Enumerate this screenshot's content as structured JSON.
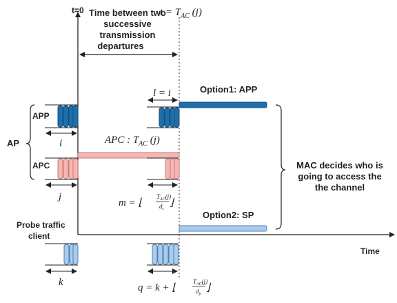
{
  "colors": {
    "app_fill": "#1f6fad",
    "app_stroke": "#16507e",
    "apc_fill": "#f5b7b4",
    "apc_stroke": "#c97d7a",
    "probe_fill": "#a9ccec",
    "probe_stroke": "#4f7fad",
    "axis": "#222222"
  },
  "labels": {
    "t0": "t=0",
    "interval_title_line1": "Time between two",
    "interval_title_line2": "successive",
    "interval_title_line3": "transmission",
    "interval_title_line4": "departures",
    "t_eq": "t = T",
    "t_sub": "AC",
    "t_arg": " (j)",
    "ap": "AP",
    "app": "APP",
    "apc": "APC",
    "probe_line1": "Probe traffic",
    "probe_line2": "client",
    "time": "Time",
    "option1": "Option1: APP",
    "option2": "Option2: SP",
    "mac_line1": "MAC decides who is",
    "mac_line2": "going to access the",
    "mac_line3": "the channel",
    "l_eq": "l = i",
    "apc_formula": "APC : T",
    "apc_formula_sub": "AC",
    "apc_formula_arg": " (j)",
    "i": "i",
    "j": "j",
    "k": "k",
    "m_prefix": "m = ⌊",
    "m_num": "T",
    "m_num_sub": "AC",
    "m_num_arg": "(j)",
    "m_den": "d",
    "m_den_sub": "c",
    "m_suffix": "⌋",
    "q_prefix": "q = k + ⌊",
    "q_num": "T",
    "q_num_sub": "AC",
    "q_num_arg": "(j)",
    "q_den": "d",
    "q_den_sub": "p",
    "q_suffix": "⌋"
  }
}
